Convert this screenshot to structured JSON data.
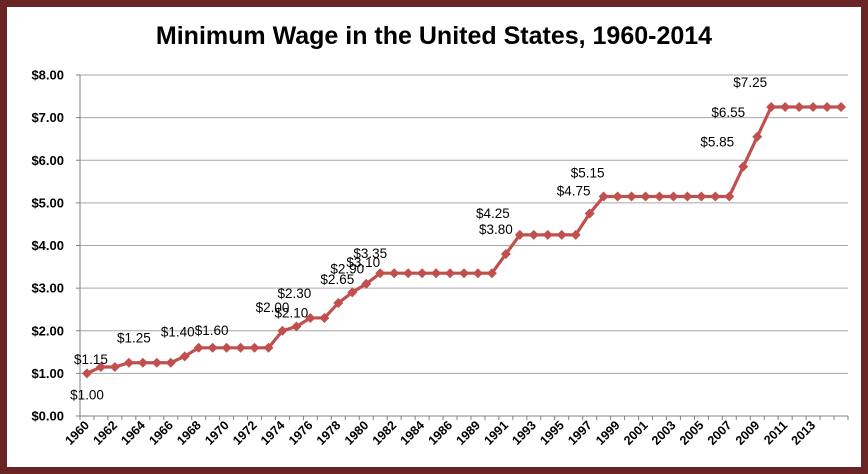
{
  "chart_data": {
    "type": "line",
    "title": "Minimum Wage in the United States, 1960-2014",
    "xlabel": "",
    "ylabel": "",
    "ylim": [
      0,
      8
    ],
    "yticks": [
      "$0.00",
      "$1.00",
      "$2.00",
      "$3.00",
      "$4.00",
      "$5.00",
      "$6.00",
      "$7.00",
      "$8.00"
    ],
    "xticks": [
      "1960",
      "1962",
      "1964",
      "1966",
      "1968",
      "1970",
      "1972",
      "1974",
      "1976",
      "1978",
      "1980",
      "1982",
      "1984",
      "1986",
      "1989",
      "1991",
      "1993",
      "1995",
      "1997",
      "1999",
      "2001",
      "2003",
      "2005",
      "2007",
      "2009",
      "2011",
      "2013"
    ],
    "grid": true,
    "legend": "none",
    "colors": {
      "line": "#c0504d",
      "marker": "#c0504d",
      "grid": "#a6a6a6",
      "frame": "#6b2424"
    },
    "series": [
      {
        "values": [
          1.0,
          1.15,
          1.15,
          1.25,
          1.25,
          1.25,
          1.25,
          1.4,
          1.6,
          1.6,
          1.6,
          1.6,
          1.6,
          1.6,
          2.0,
          2.1,
          2.3,
          2.3,
          2.65,
          2.9,
          3.1,
          3.35,
          3.35,
          3.35,
          3.35,
          3.35,
          3.35,
          3.35,
          3.35,
          3.35,
          3.8,
          4.25,
          4.25,
          4.25,
          4.25,
          4.25,
          4.75,
          5.15,
          5.15,
          5.15,
          5.15,
          5.15,
          5.15,
          5.15,
          5.15,
          5.15,
          5.15,
          5.85,
          6.55,
          7.25,
          7.25,
          7.25,
          7.25,
          7.25,
          7.25
        ]
      }
    ],
    "data_labels": [
      {
        "index": 0,
        "text": "$1.00"
      },
      {
        "index": 1,
        "text": "$1.15"
      },
      {
        "index": 3,
        "text": "$1.25"
      },
      {
        "index": 7,
        "text": "$1.40"
      },
      {
        "index": 8,
        "text": "$1.60"
      },
      {
        "index": 14,
        "text": "$2.00"
      },
      {
        "index": 15,
        "text": "$2.10"
      },
      {
        "index": 16,
        "text": "$2.30"
      },
      {
        "index": 18,
        "text": "$2.65"
      },
      {
        "index": 19,
        "text": "$2.90"
      },
      {
        "index": 20,
        "text": "$3.10"
      },
      {
        "index": 21,
        "text": "$3.35"
      },
      {
        "index": 30,
        "text": "$3.80"
      },
      {
        "index": 31,
        "text": "$4.25"
      },
      {
        "index": 36,
        "text": "$4.75"
      },
      {
        "index": 37,
        "text": "$5.15"
      },
      {
        "index": 47,
        "text": "$5.85"
      },
      {
        "index": 48,
        "text": "$6.55"
      },
      {
        "index": 49,
        "text": "$7.25"
      }
    ]
  }
}
